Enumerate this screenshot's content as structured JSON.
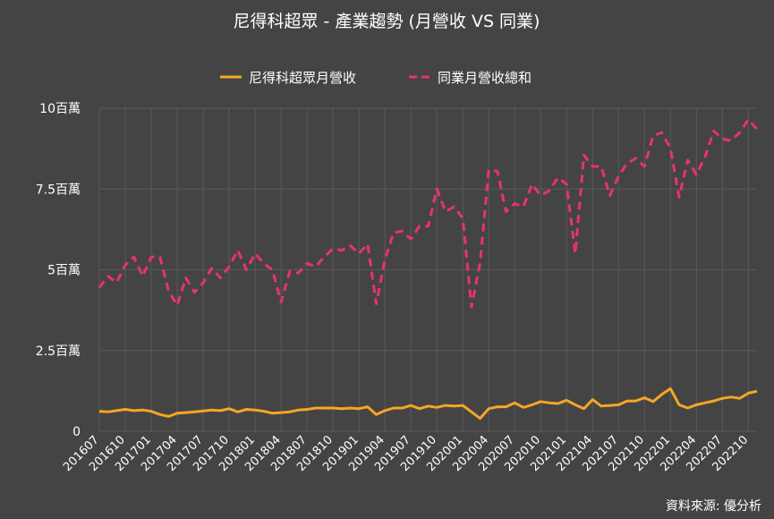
{
  "colors": {
    "background": "#444444",
    "grid": "#5a5a5a",
    "text": "#ffffff",
    "company": "#f5a623",
    "industry": "#e8336d"
  },
  "chart_data": {
    "type": "line",
    "title": "尼得科超眾 - 產業趨勢 (月營收 VS 同業)",
    "source": "資料來源: 優分析",
    "ylim": [
      0,
      10000000
    ],
    "yticks": [
      {
        "value": 0,
        "label": "0"
      },
      {
        "value": 2500000,
        "label": "2.5百萬"
      },
      {
        "value": 5000000,
        "label": "5百萬"
      },
      {
        "value": 7500000,
        "label": "7.5百萬"
      },
      {
        "value": 10000000,
        "label": "10百萬"
      }
    ],
    "xtick_labels": [
      "201607",
      "201610",
      "201701",
      "201704",
      "201707",
      "201710",
      "201801",
      "201804",
      "201807",
      "201810",
      "201901",
      "201904",
      "201907",
      "201910",
      "202001",
      "202004",
      "202007",
      "202010",
      "202101",
      "202104",
      "202107",
      "202110",
      "202201",
      "202204",
      "202207",
      "202210"
    ],
    "grid": true,
    "legend_position": "top",
    "x": [
      "201607",
      "201608",
      "201609",
      "201610",
      "201611",
      "201612",
      "201701",
      "201702",
      "201703",
      "201704",
      "201705",
      "201706",
      "201707",
      "201708",
      "201709",
      "201710",
      "201711",
      "201712",
      "201801",
      "201802",
      "201803",
      "201804",
      "201805",
      "201806",
      "201807",
      "201808",
      "201809",
      "201810",
      "201811",
      "201812",
      "201901",
      "201902",
      "201903",
      "201904",
      "201905",
      "201906",
      "201907",
      "201908",
      "201909",
      "201910",
      "201911",
      "201912",
      "202001",
      "202002",
      "202003",
      "202004",
      "202005",
      "202006",
      "202007",
      "202008",
      "202009",
      "202010",
      "202011",
      "202012",
      "202101",
      "202102",
      "202103",
      "202104",
      "202105",
      "202106",
      "202107",
      "202108",
      "202109",
      "202110",
      "202111",
      "202112",
      "202201",
      "202202",
      "202203",
      "202204",
      "202205",
      "202206",
      "202207",
      "202208",
      "202209",
      "202210",
      "202211"
    ],
    "series": [
      {
        "name": "尼得科超眾月營收",
        "style": "solid",
        "values": [
          620000,
          600000,
          640000,
          680000,
          640000,
          660000,
          620000,
          520000,
          460000,
          560000,
          580000,
          600000,
          630000,
          660000,
          640000,
          700000,
          600000,
          680000,
          660000,
          620000,
          560000,
          580000,
          600000,
          660000,
          680000,
          720000,
          720000,
          720000,
          700000,
          720000,
          700000,
          760000,
          520000,
          640000,
          720000,
          720000,
          800000,
          700000,
          780000,
          740000,
          800000,
          780000,
          800000,
          600000,
          400000,
          700000,
          760000,
          760000,
          880000,
          740000,
          820000,
          920000,
          880000,
          860000,
          960000,
          820000,
          700000,
          980000,
          780000,
          800000,
          820000,
          940000,
          940000,
          1040000,
          920000,
          1140000,
          1320000,
          820000,
          720000,
          820000,
          880000,
          940000,
          1020000,
          1060000,
          1020000,
          1180000,
          1240000
        ]
      },
      {
        "name": "同業月營收總和",
        "style": "dashed",
        "values": [
          4450000,
          4800000,
          4600000,
          5150000,
          5400000,
          4800000,
          5400000,
          5400000,
          4350000,
          3900000,
          4750000,
          4300000,
          4600000,
          5050000,
          4750000,
          5100000,
          5600000,
          5000000,
          5500000,
          5200000,
          5000000,
          4000000,
          4950000,
          4900000,
          5200000,
          5100000,
          5400000,
          5650000,
          5600000,
          5750000,
          5500000,
          5800000,
          3950000,
          5300000,
          6150000,
          6200000,
          5950000,
          6350000,
          6350000,
          7500000,
          6800000,
          6950000,
          6600000,
          3850000,
          5200000,
          8100000,
          8050000,
          6800000,
          7050000,
          6950000,
          7650000,
          7300000,
          7450000,
          7850000,
          7650000,
          5500000,
          8550000,
          8200000,
          8200000,
          7300000,
          7900000,
          8300000,
          8450000,
          8200000,
          9150000,
          9250000,
          8750000,
          7250000,
          8400000,
          7950000,
          8500000,
          9300000,
          9050000,
          9000000,
          9250000,
          9650000,
          9350000
        ]
      }
    ]
  }
}
